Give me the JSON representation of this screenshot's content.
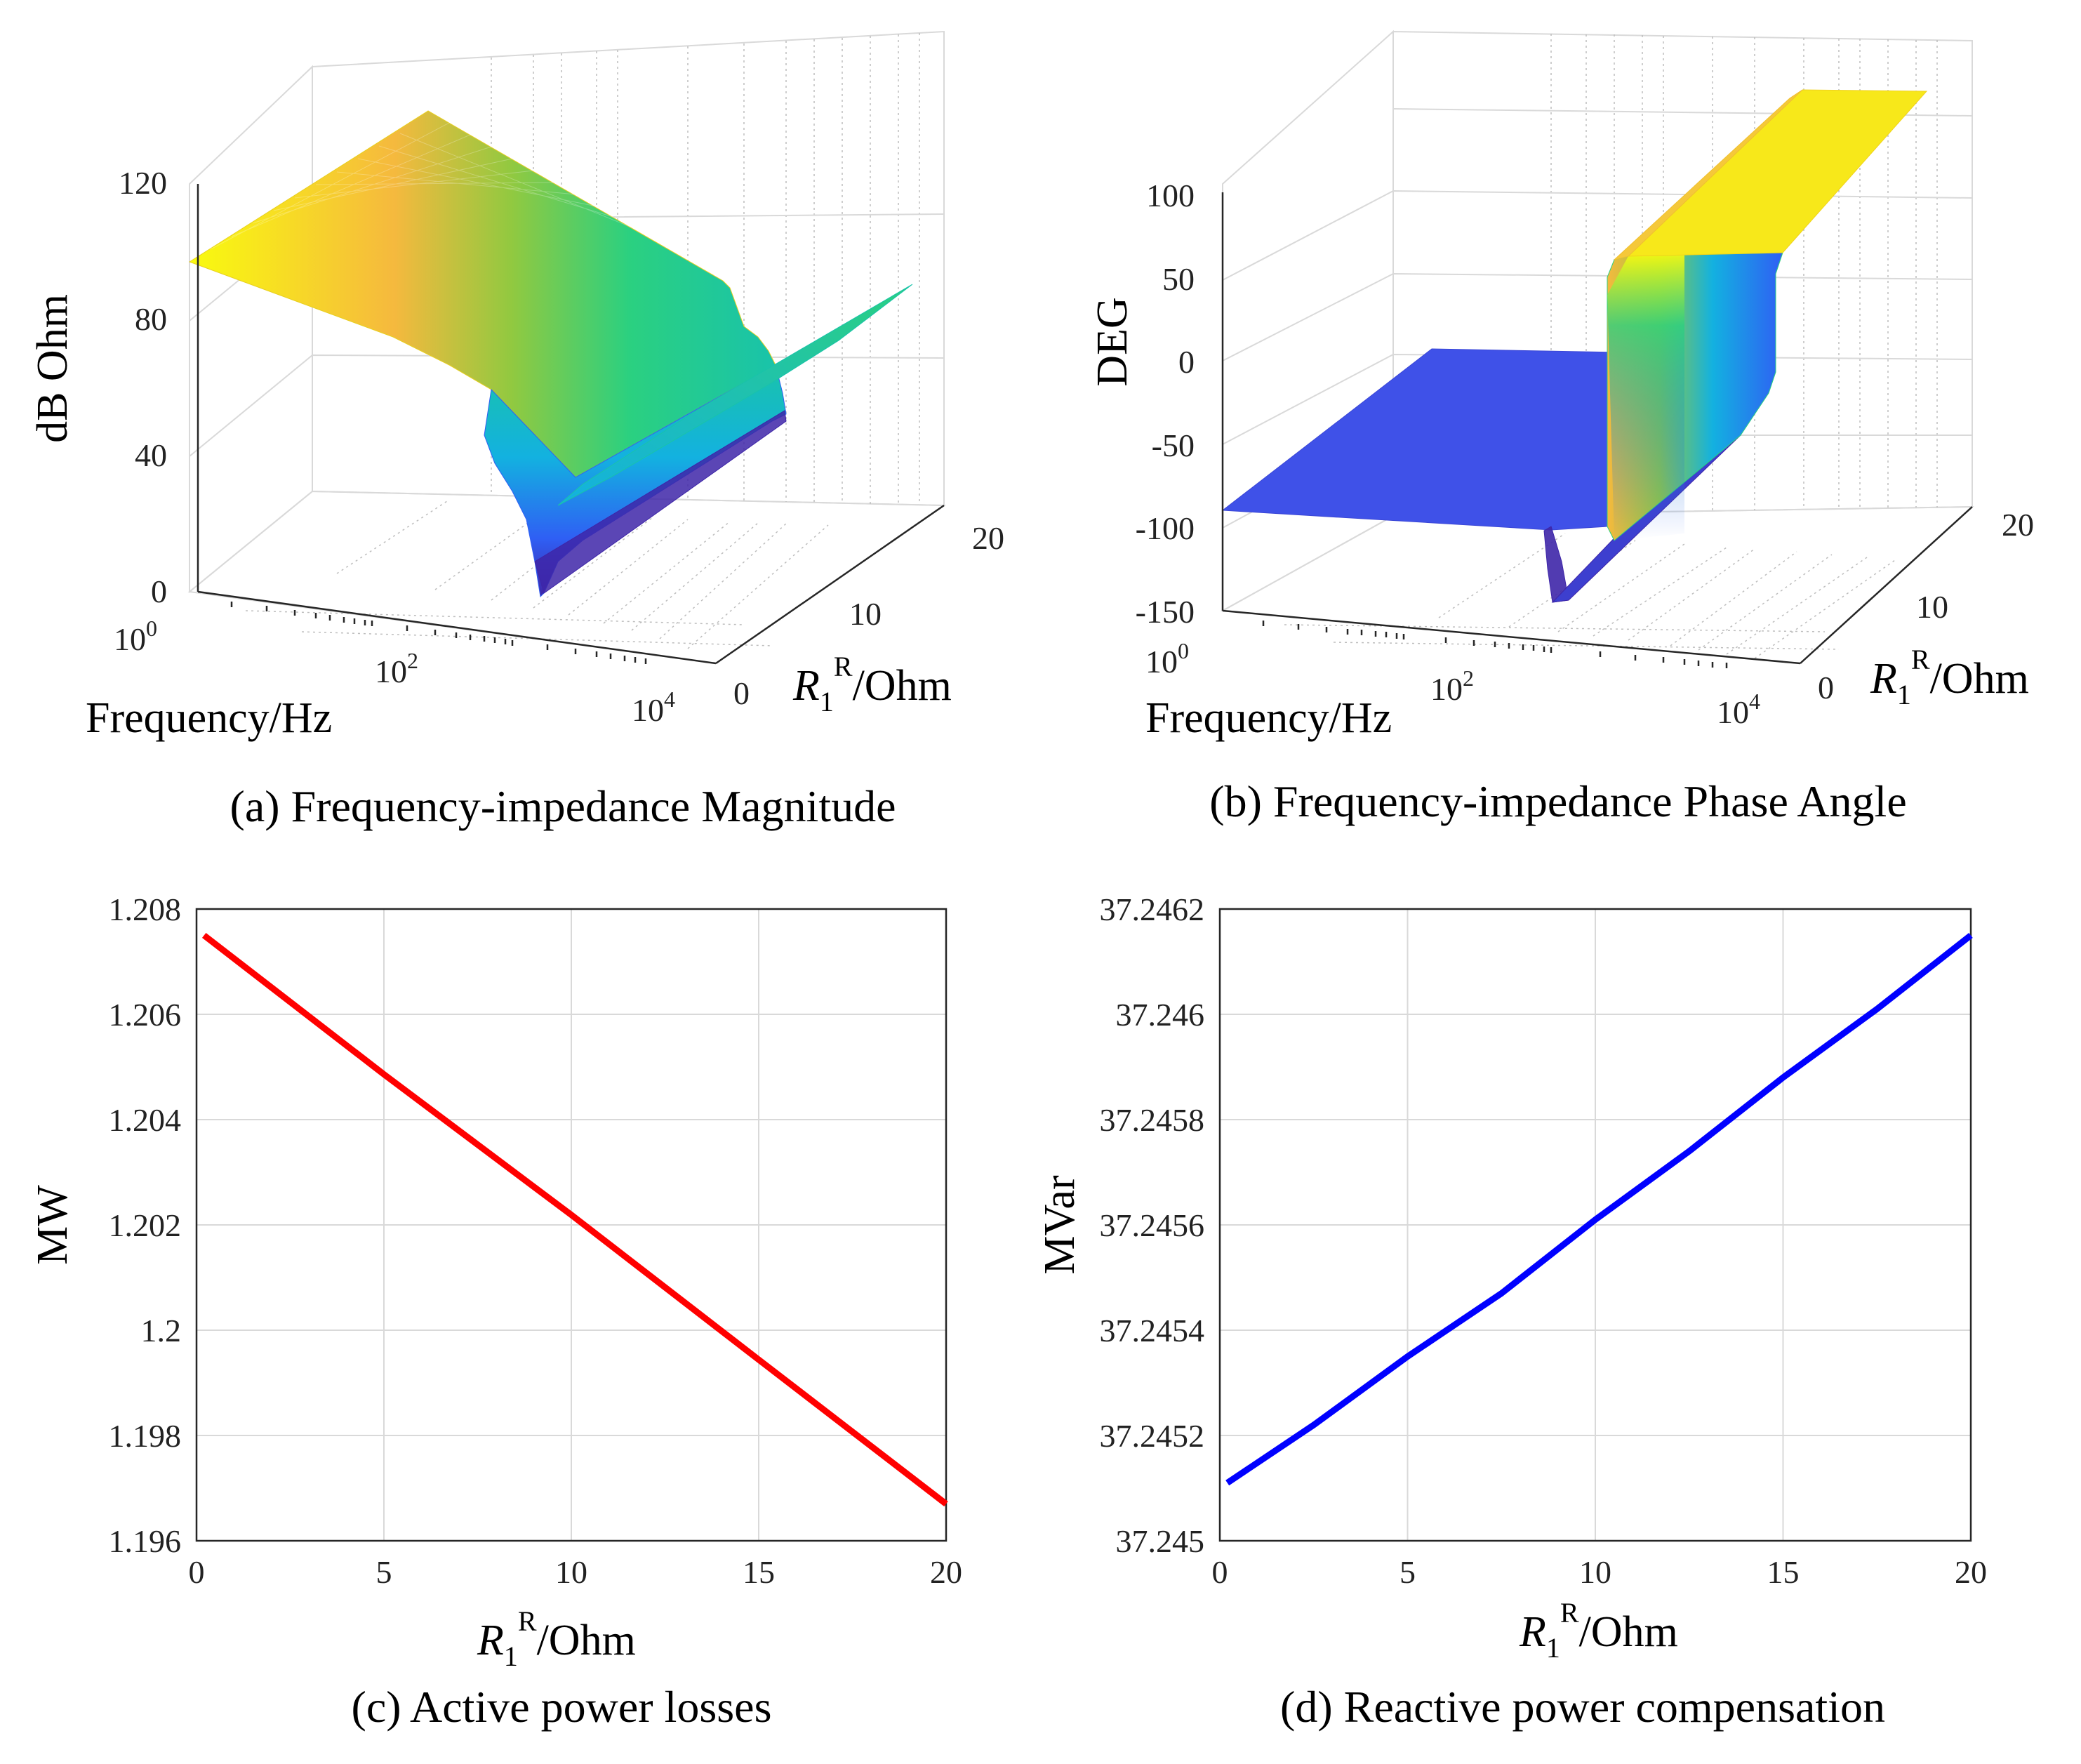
{
  "chart_data": [
    {
      "id": "a",
      "type": "surface",
      "caption": "(a) Frequency-impedance Magnitude",
      "zlabel": "dB Ohm",
      "xlabel": "Frequency/Hz",
      "ylabel_main": "R",
      "ylabel_sub": "1",
      "ylabel_sup": "R",
      "ylabel_unit": "/Ohm",
      "zticks": [
        "0",
        "40",
        "80",
        "120"
      ],
      "zlim": [
        0,
        120
      ],
      "xticks": [
        {
          "base": "10",
          "exp": "0"
        },
        {
          "base": "10",
          "exp": "2"
        },
        {
          "base": "10",
          "exp": "4"
        }
      ],
      "yticks": [
        "0",
        "10",
        "20"
      ],
      "surface_colors": [
        "#3e26a8",
        "#2f5ff4",
        "#13b1e0",
        "#19c3aa",
        "#2bd080",
        "#91c940",
        "#f5b93e",
        "#fbe12a",
        "#f9fb0e"
      ],
      "surface_profile": {
        "log10_freq": [
          0,
          1.0,
          1.7,
          2.3,
          2.6,
          2.75,
          2.9,
          3.3,
          3.6,
          3.9,
          4.1
        ],
        "db_at_R0": [
          97,
          86,
          80,
          74,
          60,
          25,
          15,
          22,
          28,
          35,
          40
        ],
        "db_at_R20": [
          97,
          86,
          80,
          74,
          72,
          70,
          62,
          52,
          50,
          60,
          88
        ]
      }
    },
    {
      "id": "b",
      "type": "surface",
      "caption": "(b) Frequency-impedance Phase Angle",
      "zlabel": "DEG",
      "xlabel": "Frequency/Hz",
      "ylabel_main": "R",
      "ylabel_sub": "1",
      "ylabel_sup": "R",
      "ylabel_unit": "/Ohm",
      "zticks": [
        "-150",
        "-100",
        "-50",
        "0",
        "50",
        "100"
      ],
      "zlim": [
        -150,
        100
      ],
      "xticks": [
        {
          "base": "10",
          "exp": "0"
        },
        {
          "base": "10",
          "exp": "2"
        },
        {
          "base": "10",
          "exp": "4"
        }
      ],
      "yticks": [
        "0",
        "10",
        "20"
      ],
      "surface_colors": [
        "#3e26a8",
        "#2f5ff4",
        "#13b1e0",
        "#19c3aa",
        "#2bd080",
        "#91c940",
        "#f5b93e",
        "#fbe12a",
        "#f9fb0e"
      ],
      "surface_profile": {
        "log10_freq": [
          0,
          2.0,
          2.5,
          2.65,
          2.75,
          2.9,
          3.2,
          3.6,
          4.1
        ],
        "deg": [
          -90,
          -90,
          -90,
          -110,
          -120,
          90,
          90,
          90,
          90
        ]
      }
    },
    {
      "id": "c",
      "type": "line",
      "caption": "(c) Active power losses",
      "xlabel_main": "R",
      "xlabel_sub": "1",
      "xlabel_sup": "R",
      "xlabel_unit": "/Ohm",
      "ylabel": "MW",
      "xlim": [
        0,
        20
      ],
      "ylim": [
        1.196,
        1.208
      ],
      "xticks": [
        0,
        5,
        10,
        15,
        20
      ],
      "xtick_labels": [
        "0",
        "5",
        "10",
        "15",
        "20"
      ],
      "yticks": [
        1.196,
        1.198,
        1.2,
        1.202,
        1.204,
        1.206,
        1.208
      ],
      "ytick_labels": [
        "1.196",
        "1.198",
        "1.2",
        "1.202",
        "1.204",
        "1.206",
        "1.208"
      ],
      "color": "#ff0000",
      "series": [
        {
          "name": "Active power losses",
          "x": [
            0.2,
            5,
            10,
            15,
            20
          ],
          "y": [
            1.2075,
            1.20486,
            1.20219,
            1.19944,
            1.1967
          ]
        }
      ]
    },
    {
      "id": "d",
      "type": "line",
      "caption": "(d)  Reactive power compensation",
      "xlabel_main": "R",
      "xlabel_sub": "1",
      "xlabel_sup": "R",
      "xlabel_unit": "/Ohm",
      "ylabel": "MVar",
      "xlim": [
        0,
        20
      ],
      "ylim": [
        37.245,
        37.2462
      ],
      "xticks": [
        0,
        5,
        10,
        15,
        20
      ],
      "xtick_labels": [
        "0",
        "5",
        "10",
        "15",
        "20"
      ],
      "yticks": [
        37.245,
        37.2452,
        37.2454,
        37.2456,
        37.2458,
        37.246,
        37.2462
      ],
      "ytick_labels": [
        "37.245",
        "37.2452",
        "37.2454",
        "37.2456",
        "37.2458",
        "37.246",
        "37.2462"
      ],
      "color": "#0000ff",
      "series": [
        {
          "name": "Reactive power compensation",
          "x": [
            0.2,
            2.5,
            5,
            7.5,
            10,
            12.5,
            15,
            17.5,
            20
          ],
          "y": [
            37.24511,
            37.24522,
            37.24535,
            37.24547,
            37.24561,
            37.24574,
            37.24588,
            37.24601,
            37.24615
          ]
        }
      ]
    }
  ]
}
